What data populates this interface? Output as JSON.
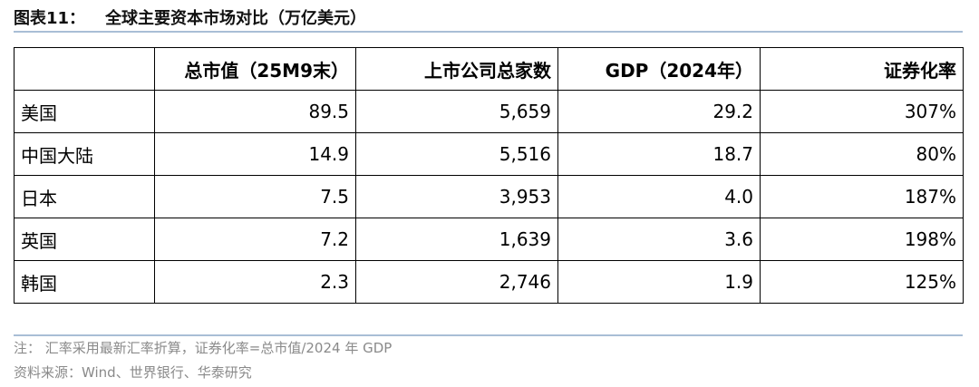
{
  "header": {
    "label": "图表11：",
    "title": "全球主要资本市场对比（万亿美元）"
  },
  "table": {
    "columns": [
      "总市值（25M9末）",
      "上市公司总家数",
      "GDP（2024年）",
      "证券化率"
    ],
    "rows": [
      [
        "美国",
        "89.5",
        "5,659",
        "29.2",
        "307%"
      ],
      [
        "中国大陆",
        "14.9",
        "5,516",
        "18.7",
        "80%"
      ],
      [
        "日本",
        "7.5",
        "3,953",
        "4.0",
        "187%"
      ],
      [
        "英国",
        "7.2",
        "1,639",
        "3.6",
        "198%"
      ],
      [
        "韩国",
        "2.3",
        "2,746",
        "1.9",
        "125%"
      ]
    ]
  },
  "notes": [
    "注：  汇率采用最新汇率折算，证券化率=总市值/2024 年 GDP",
    "资料来源：Wind、世界银行、华泰研究"
  ]
}
